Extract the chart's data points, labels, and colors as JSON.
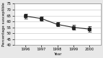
{
  "years": [
    1996,
    1997,
    1998,
    1999,
    2000
  ],
  "values": [
    64.5,
    62.5,
    57.5,
    55.0,
    53.5
  ],
  "errors": [
    2.2,
    1.8,
    1.8,
    2.0,
    2.5
  ],
  "ylabel": "Percentage susceptible",
  "xlabel": "Year",
  "ylim": [
    40,
    75
  ],
  "yticks": [
    40,
    45,
    50,
    55,
    60,
    65,
    70,
    75
  ],
  "xticks": [
    1996,
    1997,
    1998,
    1999,
    2000
  ],
  "line_color": "#222222",
  "marker": "s",
  "marker_size": 2.5,
  "marker_face": "#222222",
  "line_width": 0.8,
  "background_color": "#e8e8e8",
  "plot_bg_color": "#ffffff",
  "grid_color": "#cccccc",
  "label_fontsize": 4.0,
  "tick_fontsize": 3.8
}
